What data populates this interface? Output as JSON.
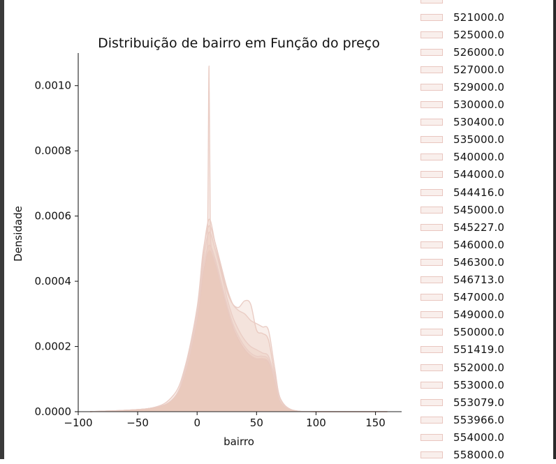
{
  "chart_data": {
    "type": "area",
    "title": "Distribuição de bairro em Função do preço",
    "xlabel": "bairro",
    "ylabel": "Densidade",
    "xlim": [
      -100,
      172
    ],
    "ylim": [
      0,
      0.0011
    ],
    "xticks": [
      -100,
      -50,
      0,
      50,
      100,
      150
    ],
    "xtick_labels": [
      "−100",
      "−50",
      "0",
      "50",
      "100",
      "150"
    ],
    "yticks": [
      0.0,
      0.0002,
      0.0004,
      0.0006,
      0.0008,
      0.001
    ],
    "ytick_labels": [
      "0.0000",
      "0.0002",
      "0.0004",
      "0.0006",
      "0.0008",
      "0.0010"
    ],
    "grid": false,
    "legend_placement": "outside right",
    "fill_color": "#e8c4b8",
    "line_color": "#eacdc5",
    "curves": [
      {
        "x": [
          -90,
          -40,
          -20,
          -10,
          0,
          5,
          10,
          15,
          20,
          25,
          30,
          35,
          40,
          45,
          50,
          55,
          60,
          65,
          70,
          80,
          100,
          160
        ],
        "y": [
          0,
          1e-05,
          4e-05,
          0.00012,
          0.0003,
          0.00048,
          0.00059,
          0.00052,
          0.00044,
          0.00037,
          0.00033,
          0.00032,
          0.00034,
          0.00033,
          0.00025,
          0.00024,
          0.00022,
          0.00012,
          4e-05,
          5e-06,
          0,
          0
        ]
      },
      {
        "x": [
          -90,
          -40,
          -20,
          -10,
          0,
          5,
          10,
          15,
          20,
          25,
          30,
          35,
          40,
          45,
          50,
          55,
          60,
          65,
          70,
          80,
          100,
          160
        ],
        "y": [
          0,
          1e-05,
          5e-05,
          0.00014,
          0.00032,
          0.00049,
          0.00057,
          0.00052,
          0.00045,
          0.00038,
          0.00033,
          0.00031,
          0.0003,
          0.00028,
          0.00027,
          0.00026,
          0.00025,
          0.00014,
          4e-05,
          5e-06,
          0,
          0
        ]
      },
      {
        "x": [
          -90,
          -40,
          -20,
          -10,
          0,
          5,
          10,
          15,
          20,
          25,
          30,
          35,
          40,
          45,
          50,
          55,
          60,
          65,
          70,
          80,
          100,
          160
        ],
        "y": [
          0,
          1e-05,
          4e-05,
          0.00013,
          0.00031,
          0.00046,
          0.00055,
          0.0005,
          0.00043,
          0.00035,
          0.00029,
          0.00025,
          0.00022,
          0.0002,
          0.00019,
          0.00018,
          0.00017,
          0.00011,
          4e-05,
          5e-06,
          0,
          0
        ]
      },
      {
        "x": [
          -90,
          -40,
          -20,
          -10,
          0,
          5,
          10,
          15,
          20,
          25,
          30,
          35,
          40,
          45,
          50,
          55,
          60,
          65,
          70,
          80,
          100,
          160
        ],
        "y": [
          0,
          1e-05,
          4e-05,
          0.00012,
          0.00029,
          0.00044,
          0.00051,
          0.00047,
          0.0004,
          0.00033,
          0.00027,
          0.00023,
          0.0002,
          0.00018,
          0.00017,
          0.00017,
          0.00016,
          0.0001,
          3e-05,
          5e-06,
          0,
          0
        ]
      },
      {
        "x": [
          -90,
          -40,
          -20,
          -10,
          0,
          5,
          8,
          9,
          10,
          11,
          12,
          15,
          20,
          25,
          30,
          35,
          40,
          45,
          50,
          55,
          60,
          65,
          70,
          80,
          100,
          160
        ],
        "y": [
          0,
          1e-05,
          4e-05,
          0.00012,
          0.00028,
          0.00042,
          0.00048,
          0.0006,
          0.00106,
          0.0006,
          0.0005,
          0.00046,
          0.00039,
          0.00032,
          0.00026,
          0.00022,
          0.00019,
          0.00017,
          0.00016,
          0.00016,
          0.00015,
          0.0001,
          3e-05,
          5e-06,
          0,
          0
        ]
      }
    ]
  },
  "legend": {
    "items": [
      "521000.0",
      "525000.0",
      "526000.0",
      "527000.0",
      "529000.0",
      "530000.0",
      "530400.0",
      "535000.0",
      "540000.0",
      "544000.0",
      "544416.0",
      "545000.0",
      "545227.0",
      "546000.0",
      "546300.0",
      "546713.0",
      "547000.0",
      "549000.0",
      "550000.0",
      "551419.0",
      "552000.0",
      "553000.0",
      "553079.0",
      "553966.0",
      "554000.0",
      "558000.0"
    ]
  }
}
